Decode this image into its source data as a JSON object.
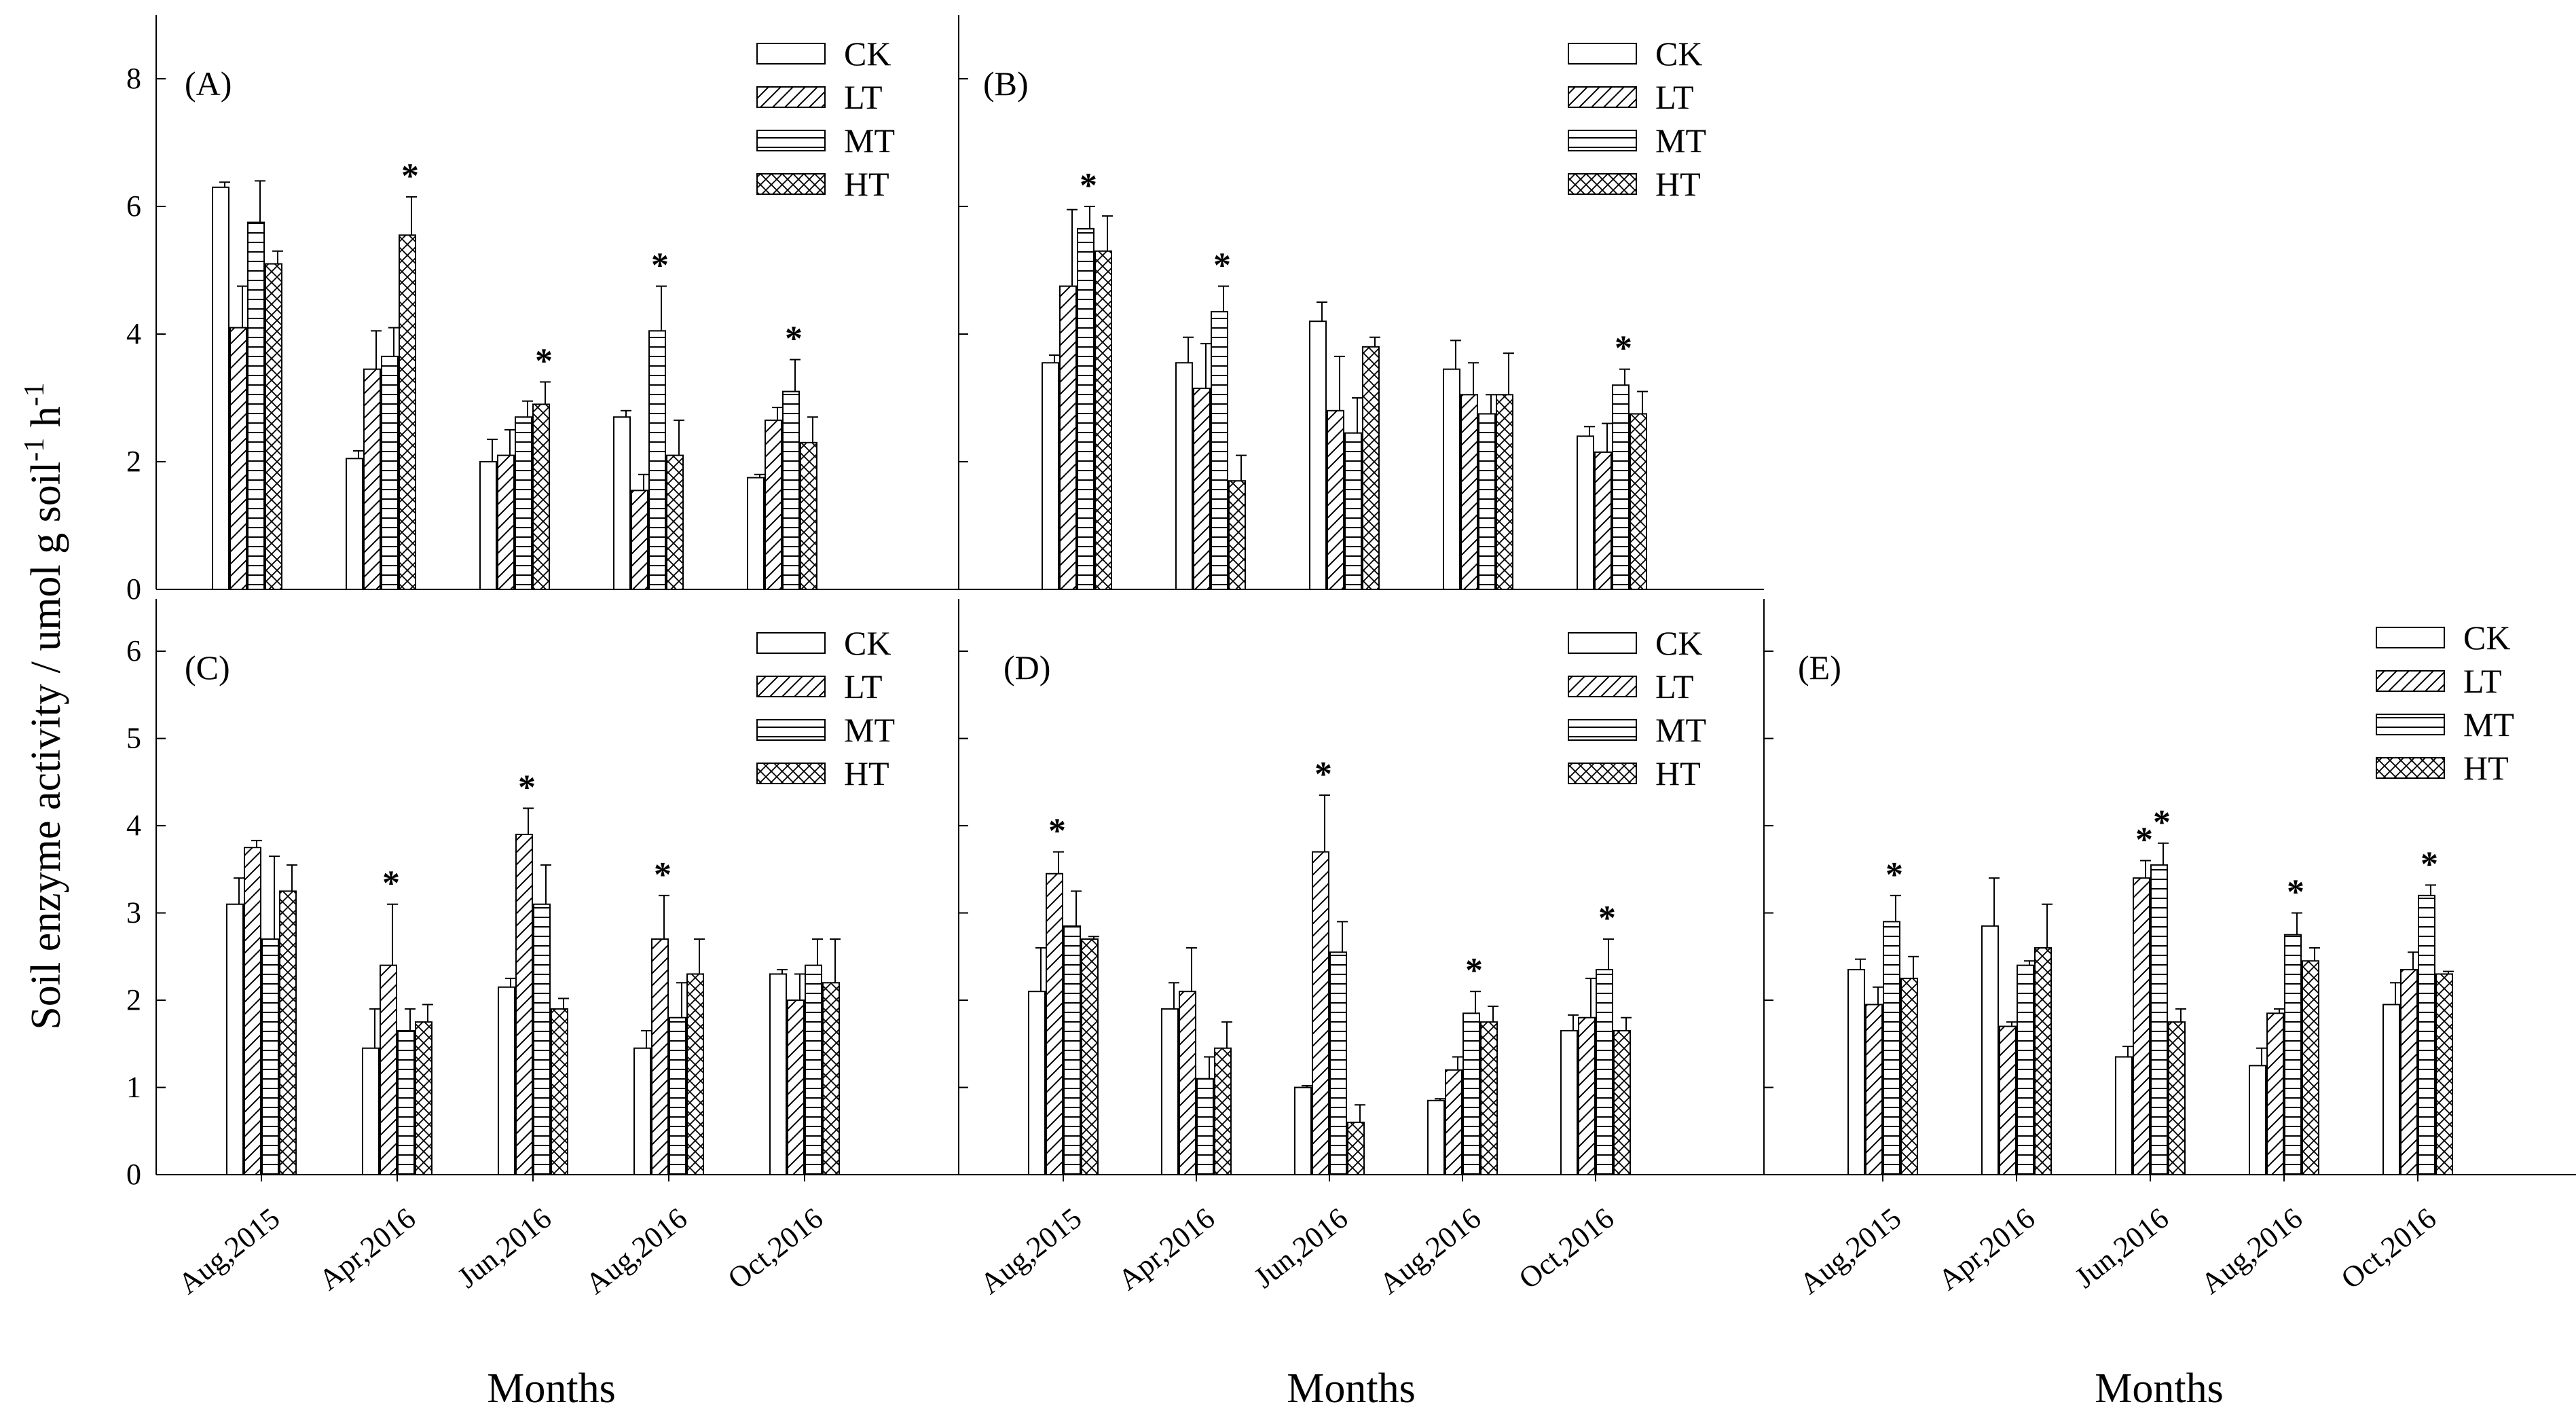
{
  "figure": {
    "ylabel_main": "Soil enzyme activity / umol g soil",
    "ylabel_sup1": "-1",
    "ylabel_mid": " h",
    "ylabel_sup2": "-1",
    "xlabel": "Months",
    "legend": [
      "CK",
      "LT",
      "MT",
      "HT"
    ],
    "categories": [
      "Aug,2015",
      "Apr,2016",
      "Jun,2016",
      "Aug,2016",
      "Oct,2016"
    ],
    "significance_marker": "*"
  },
  "chart_data": [
    {
      "type": "bar",
      "panel": "(A)",
      "ylim": [
        0,
        9
      ],
      "yticks": [
        "0",
        "2",
        "4",
        "6",
        "8"
      ],
      "categories": [
        "Aug,2015",
        "Apr,2016",
        "Jun,2016",
        "Aug,2016",
        "Oct,2016"
      ],
      "series": [
        {
          "name": "CK",
          "values": [
            6.3,
            2.05,
            2.0,
            2.7,
            1.75
          ],
          "errors": [
            0.08,
            0.12,
            0.35,
            0.1,
            0.05
          ]
        },
        {
          "name": "LT",
          "values": [
            4.1,
            3.45,
            2.1,
            1.55,
            2.65
          ],
          "errors": [
            0.65,
            0.6,
            0.4,
            0.25,
            0.2
          ]
        },
        {
          "name": "MT",
          "values": [
            5.75,
            3.65,
            2.7,
            4.05,
            3.1
          ],
          "errors": [
            0.65,
            0.45,
            0.25,
            0.7,
            0.5
          ]
        },
        {
          "name": "HT",
          "values": [
            5.1,
            5.55,
            2.9,
            2.1,
            2.3
          ],
          "errors": [
            0.2,
            0.6,
            0.35,
            0.55,
            0.4
          ]
        }
      ],
      "significance": [
        [
          "Apr,2016",
          "HT"
        ],
        [
          "Jun,2016",
          "HT"
        ],
        [
          "Aug,2016",
          "MT"
        ],
        [
          "Oct,2016",
          "MT"
        ]
      ]
    },
    {
      "type": "bar",
      "panel": "(B)",
      "ylim": [
        0,
        9
      ],
      "yticks": [],
      "categories": [
        "Aug,2015",
        "Apr,2016",
        "Jun,2016",
        "Aug,2016",
        "Oct,2016"
      ],
      "series": [
        {
          "name": "CK",
          "values": [
            3.55,
            3.55,
            4.2,
            3.45,
            2.4
          ],
          "errors": [
            0.12,
            0.4,
            0.3,
            0.45,
            0.15
          ]
        },
        {
          "name": "LT",
          "values": [
            4.75,
            3.15,
            2.8,
            3.05,
            2.15
          ],
          "errors": [
            1.2,
            0.7,
            0.85,
            0.5,
            0.45
          ]
        },
        {
          "name": "MT",
          "values": [
            5.65,
            4.35,
            2.45,
            2.75,
            3.2
          ],
          "errors": [
            0.35,
            0.4,
            0.55,
            0.3,
            0.25
          ]
        },
        {
          "name": "HT",
          "values": [
            5.3,
            1.7,
            3.8,
            3.05,
            2.75
          ],
          "errors": [
            0.55,
            0.4,
            0.15,
            0.65,
            0.35
          ]
        }
      ],
      "significance": [
        [
          "Aug,2015",
          "MT"
        ],
        [
          "Apr,2016",
          "MT"
        ],
        [
          "Oct,2016",
          "MT"
        ]
      ]
    },
    {
      "type": "bar",
      "panel": "(C)",
      "ylim": [
        0,
        6.6
      ],
      "yticks": [
        "0",
        "1",
        "2",
        "3",
        "4",
        "5",
        "6"
      ],
      "categories": [
        "Aug,2015",
        "Apr,2016",
        "Jun,2016",
        "Aug,2016",
        "Oct,2016"
      ],
      "series": [
        {
          "name": "CK",
          "values": [
            3.1,
            1.45,
            2.15,
            1.45,
            2.3
          ],
          "errors": [
            0.3,
            0.45,
            0.1,
            0.2,
            0.05
          ]
        },
        {
          "name": "LT",
          "values": [
            3.75,
            2.4,
            3.9,
            2.7,
            2.0
          ],
          "errors": [
            0.08,
            0.7,
            0.3,
            0.5,
            0.3
          ]
        },
        {
          "name": "MT",
          "values": [
            2.7,
            1.65,
            3.1,
            1.8,
            2.4
          ],
          "errors": [
            0.95,
            0.25,
            0.45,
            0.4,
            0.3
          ]
        },
        {
          "name": "HT",
          "values": [
            3.25,
            1.75,
            1.9,
            2.3,
            2.2
          ],
          "errors": [
            0.3,
            0.2,
            0.12,
            0.4,
            0.5
          ]
        }
      ],
      "significance": [
        [
          "Apr,2016",
          "LT"
        ],
        [
          "Jun,2016",
          "LT"
        ],
        [
          "Aug,2016",
          "LT"
        ]
      ]
    },
    {
      "type": "bar",
      "panel": "(D)",
      "ylim": [
        0,
        6.6
      ],
      "yticks": [],
      "categories": [
        "Aug,2015",
        "Apr,2016",
        "Jun,2016",
        "Aug,2016",
        "Oct,2016"
      ],
      "series": [
        {
          "name": "CK",
          "values": [
            2.1,
            1.9,
            1.0,
            0.85,
            1.65
          ],
          "errors": [
            0.5,
            0.3,
            0.02,
            0.02,
            0.18
          ]
        },
        {
          "name": "LT",
          "values": [
            3.45,
            2.1,
            3.7,
            1.2,
            1.8
          ],
          "errors": [
            0.25,
            0.5,
            0.65,
            0.15,
            0.45
          ]
        },
        {
          "name": "MT",
          "values": [
            2.85,
            1.1,
            2.55,
            1.85,
            2.35
          ],
          "errors": [
            0.4,
            0.25,
            0.35,
            0.25,
            0.35
          ]
        },
        {
          "name": "HT",
          "values": [
            2.7,
            1.45,
            0.6,
            1.75,
            1.65
          ],
          "errors": [
            0.03,
            0.3,
            0.2,
            0.18,
            0.15
          ]
        }
      ],
      "significance": [
        [
          "Aug,2015",
          "LT"
        ],
        [
          "Jun,2016",
          "LT"
        ],
        [
          "Aug,2016",
          "MT"
        ],
        [
          "Oct,2016",
          "MT"
        ]
      ]
    },
    {
      "type": "bar",
      "panel": "(E)",
      "ylim": [
        0,
        6.6
      ],
      "yticks": [],
      "categories": [
        "Aug,2015",
        "Apr,2016",
        "Jun,2016",
        "Aug,2016",
        "Oct,2016"
      ],
      "series": [
        {
          "name": "CK",
          "values": [
            2.35,
            2.85,
            1.35,
            1.25,
            1.95
          ],
          "errors": [
            0.12,
            0.55,
            0.12,
            0.2,
            0.25
          ]
        },
        {
          "name": "LT",
          "values": [
            1.95,
            1.7,
            3.4,
            1.85,
            2.35
          ],
          "errors": [
            0.2,
            0.05,
            0.2,
            0.05,
            0.2
          ]
        },
        {
          "name": "MT",
          "values": [
            2.9,
            2.4,
            3.55,
            2.75,
            3.2
          ],
          "errors": [
            0.3,
            0.05,
            0.25,
            0.25,
            0.12
          ]
        },
        {
          "name": "HT",
          "values": [
            2.25,
            2.6,
            1.75,
            2.45,
            2.3
          ],
          "errors": [
            0.25,
            0.5,
            0.15,
            0.15,
            0.03
          ]
        }
      ],
      "significance": [
        [
          "Aug,2015",
          "MT"
        ],
        [
          "Jun,2016",
          "LT"
        ],
        [
          "Jun,2016",
          "MT"
        ],
        [
          "Aug,2016",
          "MT"
        ],
        [
          "Oct,2016",
          "MT"
        ]
      ]
    }
  ]
}
